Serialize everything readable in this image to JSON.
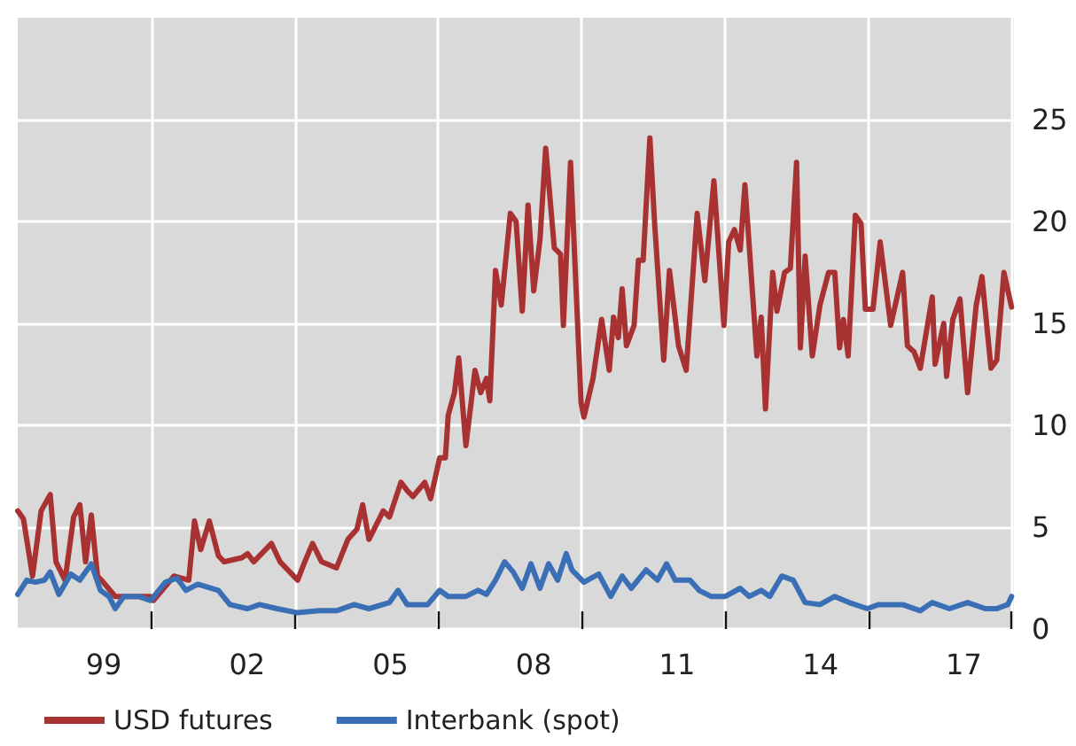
{
  "chart_data": {
    "type": "line",
    "xlim": [
      1997.2,
      2018.05
    ],
    "xticks": [
      {
        "value": 1999,
        "label": "99"
      },
      {
        "value": 2002,
        "label": "02"
      },
      {
        "value": 2005,
        "label": "05"
      },
      {
        "value": 2008,
        "label": "08"
      },
      {
        "value": 2011,
        "label": "11"
      },
      {
        "value": 2014,
        "label": "14"
      },
      {
        "value": 2017,
        "label": "17"
      },
      {
        "value": 2000,
        "label": null
      },
      {
        "value": 2003,
        "label": null
      },
      {
        "value": 2006,
        "label": null
      },
      {
        "value": 2009,
        "label": null
      },
      {
        "value": 2012,
        "label": null
      },
      {
        "value": 2015,
        "label": null
      },
      {
        "value": 2018,
        "label": null
      }
    ],
    "ylim": [
      0,
      30
    ],
    "yticks": [
      0,
      5,
      10,
      15,
      20,
      25
    ],
    "grid": true,
    "legend": "bottom left",
    "marker": "none",
    "line_style": "solid",
    "series": [
      {
        "name": "USD futures",
        "color": "#a83232",
        "x": [
          1997.2,
          1997.32,
          1997.51,
          1997.69,
          1997.88,
          1998.0,
          1998.19,
          1998.37,
          1998.5,
          1998.62,
          1998.74,
          1998.87,
          1998.99,
          1999.24,
          1999.36,
          1999.98,
          2000.04,
          2000.47,
          2000.78,
          2000.9,
          2001.03,
          2001.21,
          2001.4,
          2001.52,
          2001.89,
          2002.01,
          2002.14,
          2002.51,
          2002.69,
          2003.06,
          2003.19,
          2003.37,
          2003.56,
          2003.87,
          2004.11,
          2004.3,
          2004.42,
          2004.55,
          2004.85,
          2004.98,
          2005.22,
          2005.35,
          2005.47,
          2005.72,
          2005.84,
          2006.03,
          2006.15,
          2006.21,
          2006.34,
          2006.43,
          2006.58,
          2006.77,
          2006.89,
          2007.01,
          2007.08,
          2007.2,
          2007.32,
          2007.51,
          2007.63,
          2007.76,
          2007.88,
          2008.0,
          2008.13,
          2008.25,
          2008.43,
          2008.56,
          2008.62,
          2008.77,
          2008.99,
          2009.05,
          2009.24,
          2009.42,
          2009.58,
          2009.67,
          2009.77,
          2009.85,
          2009.94,
          2010.1,
          2010.19,
          2010.29,
          2010.43,
          2010.53,
          2010.72,
          2010.84,
          2011.03,
          2011.19,
          2011.42,
          2011.58,
          2011.77,
          2011.98,
          2012.08,
          2012.2,
          2012.32,
          2012.42,
          2012.67,
          2012.76,
          2012.85,
          2013.0,
          2013.09,
          2013.25,
          2013.37,
          2013.5,
          2013.58,
          2013.68,
          2013.83,
          2013.99,
          2014.17,
          2014.3,
          2014.4,
          2014.48,
          2014.58,
          2014.73,
          2014.85,
          2014.94,
          2015.1,
          2015.25,
          2015.47,
          2015.72,
          2015.82,
          2015.96,
          2016.09,
          2016.34,
          2016.4,
          2016.58,
          2016.64,
          2016.77,
          2016.92,
          2017.08,
          2017.26,
          2017.38,
          2017.57,
          2017.69,
          2017.84,
          2018.0
        ],
        "values": [
          5.8,
          5.4,
          2.6,
          5.8,
          6.6,
          3.3,
          2.4,
          5.5,
          6.1,
          3.3,
          5.6,
          2.6,
          2.3,
          1.6,
          1.6,
          1.6,
          1.4,
          2.6,
          2.4,
          5.3,
          3.9,
          5.3,
          3.6,
          3.3,
          3.5,
          3.7,
          3.3,
          4.2,
          3.3,
          2.4,
          3.2,
          4.2,
          3.3,
          3.0,
          4.4,
          4.9,
          6.1,
          4.4,
          5.8,
          5.5,
          7.2,
          6.8,
          6.5,
          7.2,
          6.4,
          8.4,
          8.4,
          10.5,
          11.6,
          13.3,
          9.0,
          12.7,
          11.6,
          12.3,
          11.2,
          17.6,
          15.9,
          20.4,
          20.0,
          15.6,
          20.8,
          16.6,
          19.1,
          23.6,
          18.7,
          18.4,
          14.9,
          22.9,
          11.1,
          10.4,
          12.3,
          15.2,
          12.7,
          15.3,
          14.3,
          16.7,
          13.9,
          14.9,
          18.1,
          18.1,
          24.1,
          19.9,
          13.2,
          17.6,
          13.9,
          12.7,
          20.4,
          17.1,
          22.0,
          14.9,
          19.0,
          19.6,
          18.6,
          21.8,
          13.4,
          15.3,
          10.8,
          17.5,
          15.6,
          17.5,
          17.7,
          22.9,
          13.8,
          18.3,
          13.4,
          15.9,
          17.5,
          17.5,
          13.8,
          15.2,
          13.4,
          20.3,
          19.9,
          15.7,
          15.7,
          19.0,
          14.9,
          17.5,
          13.9,
          13.6,
          12.8,
          16.3,
          13.0,
          15.0,
          12.4,
          15.2,
          16.2,
          11.6,
          15.9,
          17.3,
          12.8,
          13.2,
          17.5,
          15.8
        ]
      },
      {
        "name": "Interbank (spot)",
        "color": "#3a6eb5",
        "x": [
          1997.2,
          1997.39,
          1997.57,
          1997.76,
          1997.88,
          1998.06,
          1998.31,
          1998.5,
          1998.74,
          1998.93,
          1999.11,
          1999.24,
          1999.42,
          1999.73,
          1999.98,
          2000.29,
          2000.53,
          2000.72,
          2000.97,
          2001.4,
          2001.64,
          2002.01,
          2002.26,
          2002.63,
          2003.06,
          2003.5,
          2003.87,
          2004.24,
          2004.55,
          2004.98,
          2005.16,
          2005.35,
          2005.78,
          2006.03,
          2006.21,
          2006.58,
          2006.83,
          2007.01,
          2007.2,
          2007.39,
          2007.57,
          2007.76,
          2007.94,
          2008.13,
          2008.31,
          2008.5,
          2008.68,
          2008.8,
          2009.05,
          2009.36,
          2009.61,
          2009.85,
          2010.04,
          2010.35,
          2010.59,
          2010.78,
          2010.96,
          2011.27,
          2011.46,
          2011.71,
          2012.01,
          2012.32,
          2012.51,
          2012.76,
          2012.94,
          2013.19,
          2013.43,
          2013.68,
          2013.99,
          2014.3,
          2014.6,
          2014.98,
          2015.22,
          2015.72,
          2016.09,
          2016.34,
          2016.7,
          2017.08,
          2017.45,
          2017.69,
          2017.92,
          2018.0
        ],
        "values": [
          1.7,
          2.4,
          2.3,
          2.4,
          2.8,
          1.7,
          2.7,
          2.4,
          3.2,
          1.9,
          1.6,
          1.0,
          1.6,
          1.6,
          1.4,
          2.3,
          2.5,
          1.9,
          2.2,
          1.9,
          1.2,
          1.0,
          1.2,
          1.0,
          0.8,
          0.9,
          0.9,
          1.2,
          1.0,
          1.3,
          1.9,
          1.2,
          1.2,
          1.9,
          1.6,
          1.6,
          1.9,
          1.7,
          2.4,
          3.3,
          2.8,
          2.0,
          3.2,
          2.0,
          3.2,
          2.4,
          3.7,
          2.9,
          2.3,
          2.7,
          1.6,
          2.6,
          2.0,
          2.9,
          2.4,
          3.2,
          2.4,
          2.4,
          1.9,
          1.6,
          1.6,
          2.0,
          1.6,
          1.9,
          1.6,
          2.6,
          2.4,
          1.3,
          1.2,
          1.6,
          1.3,
          1.0,
          1.2,
          1.2,
          0.9,
          1.3,
          1.0,
          1.3,
          1.0,
          1.0,
          1.2,
          1.6
        ]
      }
    ]
  }
}
